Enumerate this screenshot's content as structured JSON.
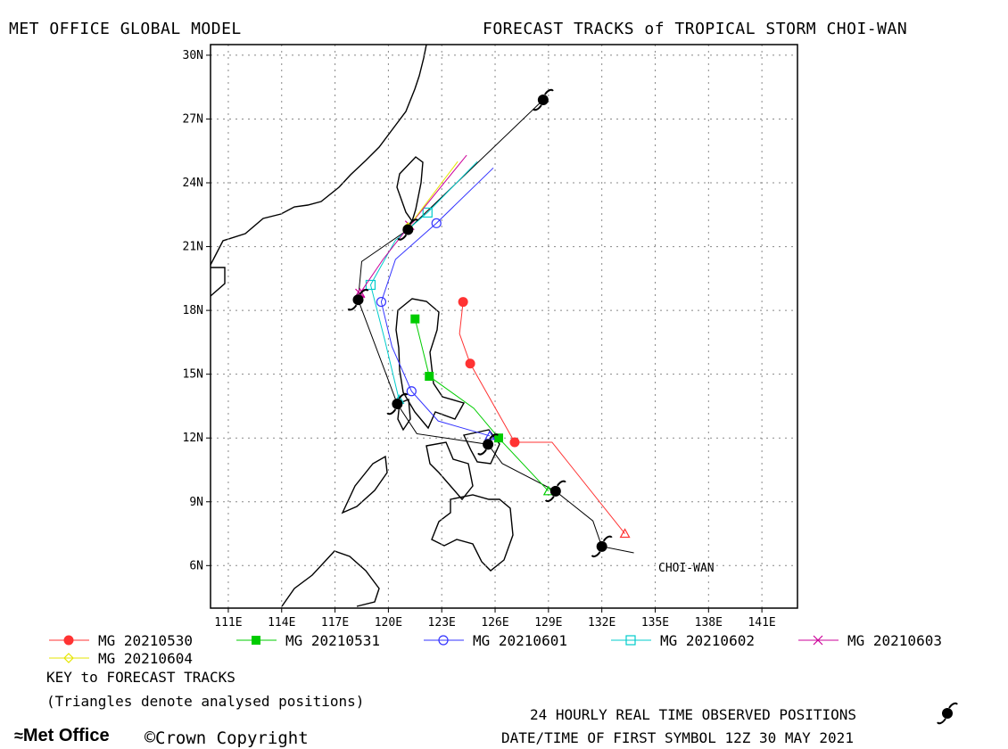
{
  "header": {
    "left_title": "MET OFFICE GLOBAL MODEL",
    "right_title": "FORECAST TRACKS of TROPICAL STORM CHOI-WAN"
  },
  "map": {
    "lon_range": [
      110,
      143
    ],
    "lat_range": [
      4,
      30.5
    ],
    "lon_ticks": [
      "111E",
      "114E",
      "117E",
      "120E",
      "123E",
      "126E",
      "129E",
      "132E",
      "135E",
      "138E",
      "141E"
    ],
    "lat_ticks": [
      "6N",
      "9N",
      "12N",
      "15N",
      "18N",
      "21N",
      "24N",
      "27N",
      "30N"
    ],
    "storm_label": "CHOI-WAN",
    "grid": "dotted"
  },
  "colors": {
    "track_20210530": "#ff3333",
    "track_20210531": "#00cc00",
    "track_20210601": "#3333ff",
    "track_20210602": "#00cccc",
    "track_20210603": "#cc0099",
    "track_20210604": "#e6e600",
    "observed": "#000000"
  },
  "observed_track": [
    {
      "lon": 133.8,
      "lat": 6.6
    },
    {
      "lon": 132.0,
      "lat": 6.9
    },
    {
      "lon": 131.5,
      "lat": 8.1
    },
    {
      "lon": 129.4,
      "lat": 9.5
    },
    {
      "lon": 126.4,
      "lat": 10.8
    },
    {
      "lon": 125.6,
      "lat": 11.7
    },
    {
      "lon": 121.6,
      "lat": 12.2
    },
    {
      "lon": 120.5,
      "lat": 13.6
    },
    {
      "lon": 118.3,
      "lat": 18.5
    },
    {
      "lon": 118.5,
      "lat": 20.3
    },
    {
      "lon": 121.1,
      "lat": 21.8
    },
    {
      "lon": 128.7,
      "lat": 27.9
    }
  ],
  "observed_symbols": [
    {
      "lon": 132.0,
      "lat": 6.9
    },
    {
      "lon": 129.4,
      "lat": 9.5
    },
    {
      "lon": 125.6,
      "lat": 11.7
    },
    {
      "lon": 120.5,
      "lat": 13.6
    },
    {
      "lon": 118.3,
      "lat": 18.5
    },
    {
      "lon": 121.1,
      "lat": 21.8
    },
    {
      "lon": 128.7,
      "lat": 27.9
    }
  ],
  "forecast_tracks": [
    {
      "name": "MG 20210530",
      "color": "#ff3333",
      "marker": "filled-circle",
      "points": [
        {
          "lon": 133.3,
          "lat": 7.5
        },
        {
          "lon": 129.2,
          "lat": 11.8
        },
        {
          "lon": 127.1,
          "lat": 11.8
        },
        {
          "lon": 124.6,
          "lat": 15.5
        },
        {
          "lon": 124.0,
          "lat": 16.9
        },
        {
          "lon": 124.2,
          "lat": 18.4
        }
      ],
      "markers": [
        {
          "lon": 127.1,
          "lat": 11.8
        },
        {
          "lon": 124.6,
          "lat": 15.5
        },
        {
          "lon": 124.2,
          "lat": 18.4
        }
      ]
    },
    {
      "name": "MG 20210531",
      "color": "#00cc00",
      "marker": "filled-square",
      "points": [
        {
          "lon": 129.0,
          "lat": 9.5
        },
        {
          "lon": 126.2,
          "lat": 12.0
        },
        {
          "lon": 124.8,
          "lat": 13.4
        },
        {
          "lon": 122.3,
          "lat": 14.9
        },
        {
          "lon": 121.5,
          "lat": 17.6
        }
      ],
      "markers": [
        {
          "lon": 126.2,
          "lat": 12.0
        },
        {
          "lon": 122.3,
          "lat": 14.9
        },
        {
          "lon": 121.5,
          "lat": 17.6
        }
      ]
    },
    {
      "name": "MG 20210601",
      "color": "#3333ff",
      "marker": "open-circle",
      "points": [
        {
          "lon": 125.7,
          "lat": 12.1
        },
        {
          "lon": 122.8,
          "lat": 12.8
        },
        {
          "lon": 121.3,
          "lat": 14.2
        },
        {
          "lon": 120.2,
          "lat": 16.3
        },
        {
          "lon": 119.6,
          "lat": 18.4
        },
        {
          "lon": 120.4,
          "lat": 20.4
        },
        {
          "lon": 122.7,
          "lat": 22.1
        },
        {
          "lon": 125.9,
          "lat": 24.7
        }
      ],
      "markers": [
        {
          "lon": 121.3,
          "lat": 14.2
        },
        {
          "lon": 119.6,
          "lat": 18.4
        },
        {
          "lon": 122.7,
          "lat": 22.1
        }
      ]
    },
    {
      "name": "MG 20210602",
      "color": "#00cccc",
      "marker": "open-square",
      "points": [
        {
          "lon": 120.6,
          "lat": 13.8
        },
        {
          "lon": 119.8,
          "lat": 16.6
        },
        {
          "lon": 119.0,
          "lat": 19.2
        },
        {
          "lon": 120.4,
          "lat": 21.3
        },
        {
          "lon": 122.2,
          "lat": 22.6
        },
        {
          "lon": 125.0,
          "lat": 25.0
        }
      ],
      "markers": [
        {
          "lon": 119.0,
          "lat": 19.2
        },
        {
          "lon": 122.2,
          "lat": 22.6
        }
      ]
    },
    {
      "name": "MG 20210603",
      "color": "#cc0099",
      "marker": "cross",
      "points": [
        {
          "lon": 118.4,
          "lat": 18.8
        },
        {
          "lon": 119.7,
          "lat": 20.4
        },
        {
          "lon": 121.2,
          "lat": 22.0
        },
        {
          "lon": 124.4,
          "lat": 25.3
        }
      ],
      "markers": [
        {
          "lon": 118.4,
          "lat": 18.8
        },
        {
          "lon": 121.2,
          "lat": 22.0
        }
      ]
    },
    {
      "name": "MG 20210604",
      "color": "#e6e600",
      "marker": "open-diamond",
      "points": [
        {
          "lon": 121.1,
          "lat": 21.9
        },
        {
          "lon": 123.9,
          "lat": 25.0
        }
      ],
      "markers": [
        {
          "lon": 121.1,
          "lat": 21.9
        }
      ]
    }
  ],
  "legend": {
    "items": [
      "MG 20210530",
      "MG 20210531",
      "MG 20210601",
      "MG 20210602",
      "MG 20210603",
      "MG 20210604"
    ],
    "key_title": "KEY to FORECAST TRACKS",
    "key_note": "(Triangles denote analysed positions)"
  },
  "footer": {
    "observed_note": "24 HOURLY REAL TIME OBSERVED POSITIONS",
    "first_symbol": "DATE/TIME OF FIRST SYMBOL 12Z 30 MAY 2021",
    "logo": "Met Office",
    "copyright": "Crown Copyright"
  }
}
